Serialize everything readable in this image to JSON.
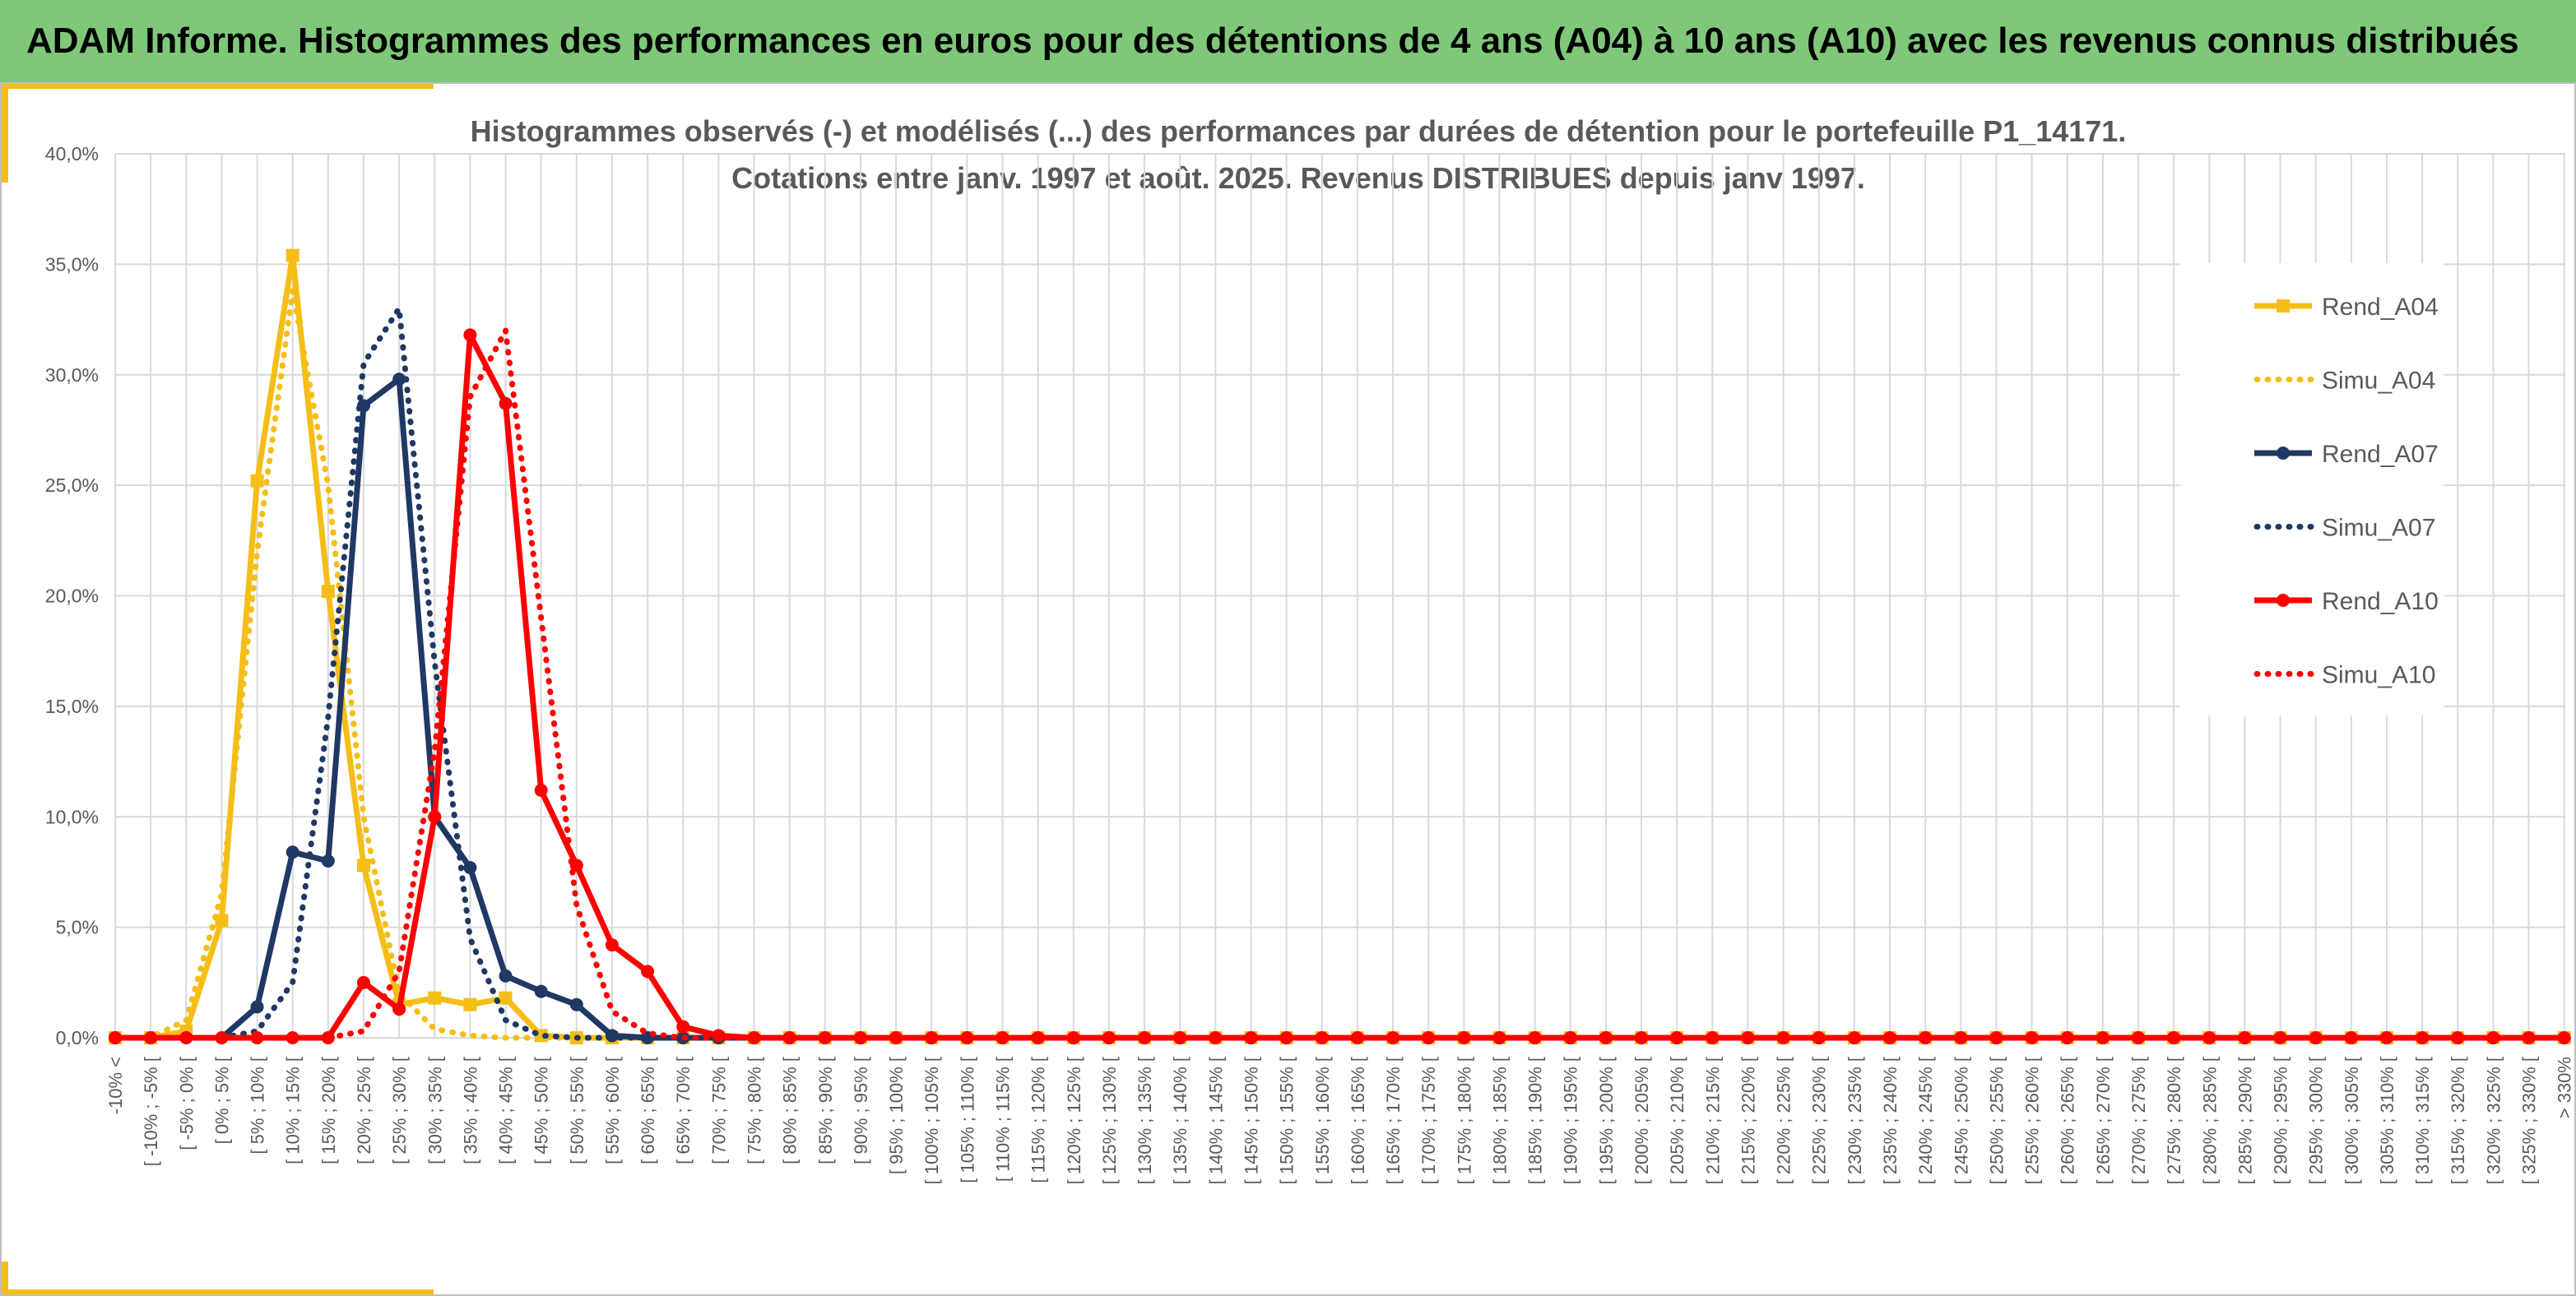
{
  "header": {
    "title": "ADAM Informe. Histogrammes des performances en euros pour des détentions de 4 ans (A04) à 10 ans (A10) avec les revenus connus distribués",
    "background": "#7fc87a",
    "accent_color": "#f5be17"
  },
  "chart_data": {
    "type": "line",
    "title_lines": [
      "Histogrammes observés (-) et modélisés (...) des performances par durées de détention pour le portefeuille P1_14171.",
      "Cotations entre janv. 1997 et août. 2025. Revenus DISTRIBUES depuis janv 1997."
    ],
    "xlabel": "",
    "ylabel": "",
    "ylim": [
      0,
      40
    ],
    "yticks": [
      "0,0%",
      "5,0%",
      "10,0%",
      "15,0%",
      "20,0%",
      "25,0%",
      "30,0%",
      "35,0%",
      "40,0%"
    ],
    "ytick_values": [
      0,
      5,
      10,
      15,
      20,
      25,
      30,
      35,
      40
    ],
    "categories": [
      "-10% <",
      "[ -10% ; -5% [",
      "[ -5% ; 0% [",
      "[ 0% ; 5% [",
      "[ 5% ; 10% [",
      "[ 10% ; 15% [",
      "[ 15% ; 20% [",
      "[ 20% ; 25% [",
      "[ 25% ; 30% [",
      "[ 30% ; 35% [",
      "[ 35% ; 40% [",
      "[ 40% ; 45% [",
      "[ 45% ; 50% [",
      "[ 50% ; 55% [",
      "[ 55% ; 60% [",
      "[ 60% ; 65% [",
      "[ 65% ; 70% [",
      "[ 70% ; 75% [",
      "[ 75% ; 80% [",
      "[ 80% ; 85% [",
      "[ 85% ; 90% [",
      "[ 90% ; 95% [",
      "[ 95% ; 100% [",
      "[ 100% ; 105% [",
      "[ 105% ; 110% [",
      "[ 110% ; 115% [",
      "[ 115% ; 120% [",
      "[ 120% ; 125% [",
      "[ 125% ; 130% [",
      "[ 130% ; 135% [",
      "[ 135% ; 140% [",
      "[ 140% ; 145% [",
      "[ 145% ; 150% [",
      "[ 150% ; 155% [",
      "[ 155% ; 160% [",
      "[ 160% ; 165% [",
      "[ 165% ; 170% [",
      "[ 170% ; 175% [",
      "[ 175% ; 180% [",
      "[ 180% ; 185% [",
      "[ 185% ; 190% [",
      "[ 190% ; 195% [",
      "[ 195% ; 200% [",
      "[ 200% ; 205% [",
      "[ 205% ; 210% [",
      "[ 210% ; 215% [",
      "[ 215% ; 220% [",
      "[ 220% ; 225% [",
      "[ 225% ; 230% [",
      "[ 230% ; 235% [",
      "[ 235% ; 240% [",
      "[ 240% ; 245% [",
      "[ 245% ; 250% [",
      "[ 250% ; 255% [",
      "[ 255% ; 260% [",
      "[ 260% ; 265% [",
      "[ 265% ; 270% [",
      "[ 270% ; 275% [",
      "[ 275% ; 280% [",
      "[ 280% ; 285% [",
      "[ 285% ; 290% [",
      "[ 290% ; 295% [",
      "[ 295% ; 300% [",
      "[ 300% ; 305% [",
      "[ 305% ; 310% [",
      "[ 310% ; 315% [",
      "[ 315% ; 320% [",
      "[ 320% ; 325% [",
      "[ 325% ; 330% [",
      "> 330%"
    ],
    "grid": true,
    "legend_position": "right",
    "series": [
      {
        "name": "Rend_A04",
        "color": "#f5be17",
        "style": "solid",
        "marker": "square",
        "values": [
          0,
          0,
          0.3,
          5.3,
          25.2,
          35.4,
          20.2,
          7.8,
          1.5,
          1.8,
          1.5,
          1.8,
          0.1,
          0,
          0,
          0,
          0,
          0,
          0,
          0,
          0,
          0,
          0,
          0,
          0,
          0,
          0,
          0,
          0,
          0,
          0,
          0,
          0,
          0,
          0,
          0,
          0,
          0,
          0,
          0,
          0,
          0,
          0,
          0,
          0,
          0,
          0,
          0,
          0,
          0,
          0,
          0,
          0,
          0,
          0,
          0,
          0,
          0,
          0,
          0,
          0,
          0,
          0,
          0,
          0,
          0,
          0,
          0,
          0,
          0
        ]
      },
      {
        "name": "Simu_A04",
        "color": "#f5be17",
        "style": "dotted",
        "marker": "none",
        "values": [
          0,
          0,
          0.8,
          6.5,
          22.0,
          33.8,
          25.0,
          10.0,
          2.0,
          0.4,
          0.1,
          0,
          0,
          0,
          0,
          0,
          0,
          0,
          0,
          0,
          0,
          0,
          0,
          0,
          0,
          0,
          0,
          0,
          0,
          0,
          0,
          0,
          0,
          0,
          0,
          0,
          0,
          0,
          0,
          0,
          0,
          0,
          0,
          0,
          0,
          0,
          0,
          0,
          0,
          0,
          0,
          0,
          0,
          0,
          0,
          0,
          0,
          0,
          0,
          0,
          0,
          0,
          0,
          0,
          0,
          0,
          0,
          0,
          0,
          0
        ]
      },
      {
        "name": "Rend_A07",
        "color": "#1f3864",
        "style": "solid",
        "marker": "circle",
        "values": [
          0,
          0,
          0,
          0,
          1.4,
          8.4,
          8.0,
          28.6,
          29.8,
          10.0,
          7.7,
          2.8,
          2.1,
          1.5,
          0.1,
          0,
          0,
          0,
          0,
          0,
          0,
          0,
          0,
          0,
          0,
          0,
          0,
          0,
          0,
          0,
          0,
          0,
          0,
          0,
          0,
          0,
          0,
          0,
          0,
          0,
          0,
          0,
          0,
          0,
          0,
          0,
          0,
          0,
          0,
          0,
          0,
          0,
          0,
          0,
          0,
          0,
          0,
          0,
          0,
          0,
          0,
          0,
          0,
          0,
          0,
          0,
          0,
          0,
          0,
          0
        ]
      },
      {
        "name": "Simu_A07",
        "color": "#1f3864",
        "style": "dotted",
        "marker": "none",
        "values": [
          0,
          0,
          0,
          0,
          0.3,
          2.5,
          14.5,
          30.5,
          33.0,
          17.0,
          4.5,
          0.8,
          0.1,
          0,
          0,
          0,
          0,
          0,
          0,
          0,
          0,
          0,
          0,
          0,
          0,
          0,
          0,
          0,
          0,
          0,
          0,
          0,
          0,
          0,
          0,
          0,
          0,
          0,
          0,
          0,
          0,
          0,
          0,
          0,
          0,
          0,
          0,
          0,
          0,
          0,
          0,
          0,
          0,
          0,
          0,
          0,
          0,
          0,
          0,
          0,
          0,
          0,
          0,
          0,
          0,
          0,
          0,
          0,
          0,
          0
        ]
      },
      {
        "name": "Rend_A10",
        "color": "#ff0000",
        "style": "solid",
        "marker": "circle",
        "values": [
          0,
          0,
          0,
          0,
          0,
          0,
          0,
          2.5,
          1.3,
          10.0,
          31.8,
          28.7,
          11.2,
          7.8,
          4.2,
          3.0,
          0.5,
          0.1,
          0,
          0,
          0,
          0,
          0,
          0,
          0,
          0,
          0,
          0,
          0,
          0,
          0,
          0,
          0,
          0,
          0,
          0,
          0,
          0,
          0,
          0,
          0,
          0,
          0,
          0,
          0,
          0,
          0,
          0,
          0,
          0,
          0,
          0,
          0,
          0,
          0,
          0,
          0,
          0,
          0,
          0,
          0,
          0,
          0,
          0,
          0,
          0,
          0,
          0,
          0,
          0
        ]
      },
      {
        "name": "Simu_A10",
        "color": "#ff0000",
        "style": "dotted",
        "marker": "none",
        "values": [
          0,
          0,
          0,
          0,
          0,
          0,
          0,
          0.3,
          3.0,
          13.0,
          29.0,
          32.0,
          19.0,
          6.0,
          1.2,
          0.2,
          0,
          0,
          0,
          0,
          0,
          0,
          0,
          0,
          0,
          0,
          0,
          0,
          0,
          0,
          0,
          0,
          0,
          0,
          0,
          0,
          0,
          0,
          0,
          0,
          0,
          0,
          0,
          0,
          0,
          0,
          0,
          0,
          0,
          0,
          0,
          0,
          0,
          0,
          0,
          0,
          0,
          0,
          0,
          0,
          0,
          0,
          0,
          0,
          0,
          0,
          0,
          0,
          0,
          0
        ]
      }
    ]
  }
}
